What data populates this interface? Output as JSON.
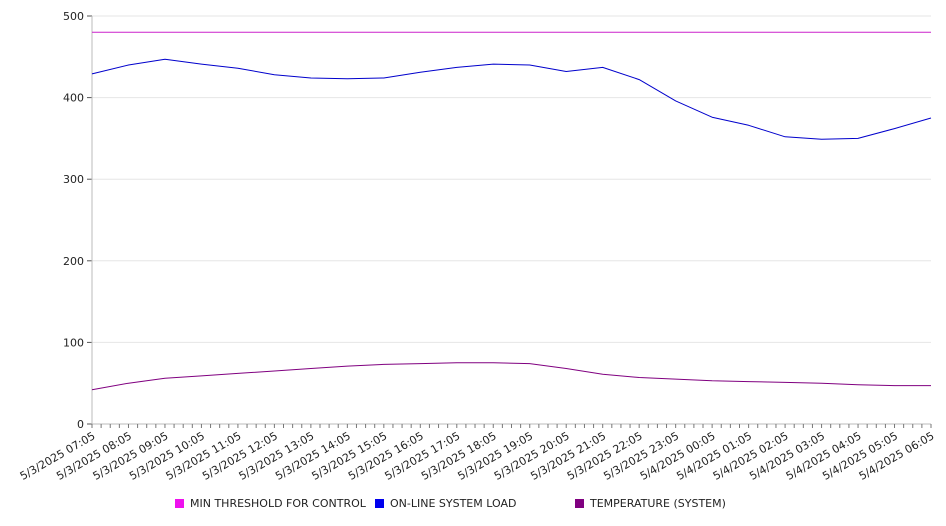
{
  "chart_data": {
    "type": "line",
    "title": "",
    "xlabel": "",
    "ylabel": "",
    "ylim": [
      0,
      500
    ],
    "yticks": [
      0,
      100,
      200,
      300,
      400,
      500
    ],
    "grid": "horizontal",
    "legend_position": "bottom",
    "x": [
      "5/3/2025 07:05",
      "5/3/2025 08:05",
      "5/3/2025 09:05",
      "5/3/2025 10:05",
      "5/3/2025 11:05",
      "5/3/2025 12:05",
      "5/3/2025 13:05",
      "5/3/2025 14:05",
      "5/3/2025 15:05",
      "5/3/2025 16:05",
      "5/3/2025 17:05",
      "5/3/2025 18:05",
      "5/3/2025 19:05",
      "5/3/2025 20:05",
      "5/3/2025 21:05",
      "5/3/2025 22:05",
      "5/3/2025 23:05",
      "5/4/2025 00:05",
      "5/4/2025 01:05",
      "5/4/2025 02:05",
      "5/4/2025 03:05",
      "5/4/2025 04:05",
      "5/4/2025 05:05",
      "5/4/2025 06:05"
    ],
    "series": [
      {
        "name": "MIN THRESHOLD FOR CONTROL",
        "color": "#cc22cc",
        "legend_color": "#ee11ee",
        "values": [
          480,
          480,
          480,
          480,
          480,
          480,
          480,
          480,
          480,
          480,
          480,
          480,
          480,
          480,
          480,
          480,
          480,
          480,
          480,
          480,
          480,
          480,
          480,
          480
        ]
      },
      {
        "name": "ON-LINE SYSTEM LOAD",
        "color": "#0000cc",
        "legend_color": "#0000ee",
        "values": [
          429,
          440,
          447,
          441,
          436,
          428,
          424,
          423,
          424,
          431,
          437,
          441,
          440,
          432,
          437,
          422,
          396,
          376,
          366,
          352,
          349,
          350,
          362,
          375
        ]
      },
      {
        "name": "TEMPERATURE (SYSTEM)",
        "color": "#800080",
        "legend_color": "#800080",
        "values": [
          42,
          50,
          56,
          59,
          62,
          65,
          68,
          71,
          73,
          74,
          75,
          75,
          74,
          68,
          61,
          57,
          55,
          53,
          52,
          51,
          50,
          48,
          47,
          47
        ]
      }
    ]
  }
}
